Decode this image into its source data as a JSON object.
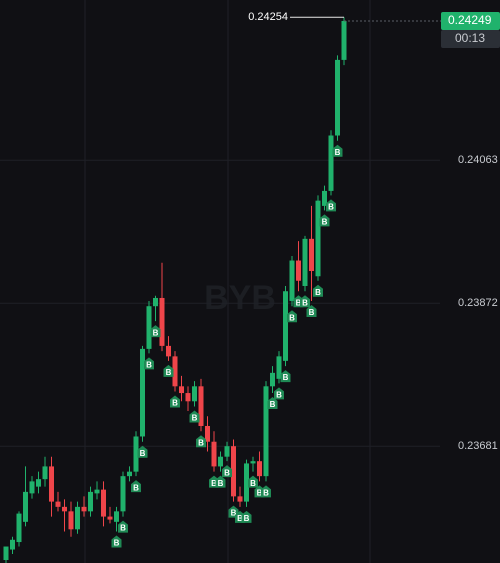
{
  "chart_data": {
    "type": "candlestick",
    "open": [
      0.23529,
      0.23543,
      0.23553,
      0.2358,
      0.23618,
      0.23627,
      0.23637,
      0.23654,
      0.23607,
      0.236,
      0.23594,
      0.2357,
      0.236,
      0.23594,
      0.23618,
      0.23623,
      0.23587,
      0.2358,
      0.23594,
      0.23641,
      0.23647,
      0.23694,
      0.23811,
      0.23868,
      0.23879,
      0.23815,
      0.23801,
      0.23761,
      0.23752,
      0.23741,
      0.23761,
      0.23708,
      0.23687,
      0.23654,
      0.23667,
      0.23681,
      0.23614,
      0.23607,
      0.23658,
      0.23661,
      0.23641,
      0.23761,
      0.23771,
      0.23795,
      0.23875,
      0.23929,
      0.23895,
      0.23958,
      0.23908,
      0.24002,
      0.24022,
      0.24096,
      0.24197
    ],
    "high": [
      0.23547,
      0.2356,
      0.23594,
      0.23654,
      0.23641,
      0.23647,
      0.23667,
      0.23667,
      0.2362,
      0.2361,
      0.23607,
      0.23607,
      0.23614,
      0.23627,
      0.23634,
      0.23634,
      0.236,
      0.236,
      0.23647,
      0.23654,
      0.23701,
      0.23815,
      0.23875,
      0.23882,
      0.23926,
      0.23828,
      0.23808,
      0.23775,
      0.23761,
      0.23768,
      0.23771,
      0.23721,
      0.23701,
      0.23674,
      0.23687,
      0.2369,
      0.23627,
      0.23663,
      0.23667,
      0.23674,
      0.23768,
      0.23788,
      0.23808,
      0.23895,
      0.23935,
      0.23955,
      0.23962,
      0.24002,
      0.24016,
      0.24029,
      0.24103,
      0.24203,
      0.24254
    ],
    "low": [
      0.23524,
      0.23537,
      0.23547,
      0.23574,
      0.23611,
      0.23618,
      0.23627,
      0.23587,
      0.23594,
      0.23567,
      0.2356,
      0.23564,
      0.23587,
      0.23587,
      0.2361,
      0.23574,
      0.23578,
      0.23567,
      0.23587,
      0.23634,
      0.23641,
      0.23687,
      0.23805,
      0.23848,
      0.23808,
      0.23795,
      0.23754,
      0.23741,
      0.23728,
      0.23734,
      0.23701,
      0.23674,
      0.23647,
      0.23647,
      0.23661,
      0.23607,
      0.236,
      0.236,
      0.23647,
      0.23634,
      0.23634,
      0.23752,
      0.23765,
      0.23788,
      0.23868,
      0.23888,
      0.23888,
      0.23875,
      0.23902,
      0.23996,
      0.24016,
      0.24089,
      0.2419
    ],
    "close": [
      0.23547,
      0.23556,
      0.23591,
      0.2362,
      0.23634,
      0.23637,
      0.23654,
      0.23607,
      0.236,
      0.23594,
      0.2357,
      0.236,
      0.23594,
      0.2362,
      0.23623,
      0.23587,
      0.23583,
      0.23594,
      0.23641,
      0.23647,
      0.23694,
      0.23811,
      0.23868,
      0.23879,
      0.23815,
      0.23801,
      0.23761,
      0.23752,
      0.23741,
      0.23761,
      0.23708,
      0.23687,
      0.23654,
      0.23667,
      0.23681,
      0.23614,
      0.23607,
      0.23658,
      0.23661,
      0.23641,
      0.23761,
      0.23779,
      0.23801,
      0.23888,
      0.23929,
      0.23902,
      0.23958,
      0.23915,
      0.24009,
      0.24022,
      0.24096,
      0.24197,
      0.24249
    ],
    "up_color": "#20b26c",
    "down_color": "#ef454a",
    "markers": [
      {
        "index": 17,
        "label": "B"
      },
      {
        "index": 18,
        "label": "B"
      },
      {
        "index": 20,
        "label": "B"
      },
      {
        "index": 21,
        "label": "B"
      },
      {
        "index": 22,
        "label": "B"
      },
      {
        "index": 23,
        "label": "B"
      },
      {
        "index": 25,
        "label": "B"
      },
      {
        "index": 26,
        "label": "B"
      },
      {
        "index": 29,
        "label": "B"
      },
      {
        "index": 30,
        "label": "B"
      },
      {
        "index": 32,
        "label": "B"
      },
      {
        "index": 33,
        "label": "B"
      },
      {
        "index": 34,
        "label": "B"
      },
      {
        "index": 35,
        "label": "B"
      },
      {
        "index": 36,
        "label": "B"
      },
      {
        "index": 37,
        "label": "B"
      },
      {
        "index": 38,
        "label": "B"
      },
      {
        "index": 39,
        "label": "B"
      },
      {
        "index": 40,
        "label": "B"
      },
      {
        "index": 41,
        "label": "B"
      },
      {
        "index": 42,
        "label": "B"
      },
      {
        "index": 43,
        "label": "B"
      },
      {
        "index": 44,
        "label": "B"
      },
      {
        "index": 45,
        "label": "B"
      },
      {
        "index": 46,
        "label": "B"
      },
      {
        "index": 47,
        "label": "B"
      },
      {
        "index": 48,
        "label": "B"
      },
      {
        "index": 49,
        "label": "B"
      },
      {
        "index": 50,
        "label": "B"
      },
      {
        "index": 51,
        "label": "B"
      }
    ],
    "ylim": [
      0.23525,
      0.24277
    ],
    "yticks": [
      0.23681,
      0.23872,
      0.24063
    ],
    "high_annotation": 0.24254,
    "last_price": 0.24249,
    "countdown": "00:13",
    "watermark": "BYB"
  }
}
